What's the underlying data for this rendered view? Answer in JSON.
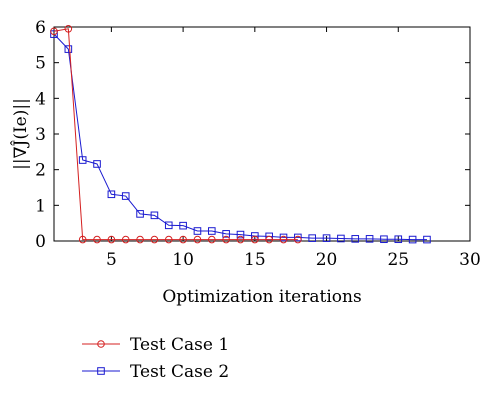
{
  "chart_data": {
    "type": "line",
    "title": "",
    "xlabel": "Optimization iterations",
    "ylabel": "||∇Ĵ(Ie)||",
    "xlim": [
      1,
      30
    ],
    "ylim": [
      0,
      6
    ],
    "xticks": [
      5,
      10,
      15,
      20,
      25,
      30
    ],
    "yticks": [
      0,
      1,
      2,
      3,
      4,
      5,
      6
    ],
    "grid": false,
    "legend_position": "bottom-left",
    "series": [
      {
        "name": "Test Case 1",
        "color": "#d42020",
        "marker": "circle",
        "x": [
          1,
          2,
          3,
          4,
          5,
          6,
          7,
          8,
          9,
          10,
          11,
          12,
          13,
          14,
          15,
          16,
          17,
          18
        ],
        "y": [
          5.88,
          5.95,
          0.04,
          0.04,
          0.04,
          0.04,
          0.04,
          0.04,
          0.04,
          0.04,
          0.04,
          0.04,
          0.04,
          0.04,
          0.04,
          0.04,
          0.04,
          0.04
        ]
      },
      {
        "name": "Test Case 2",
        "color": "#1a1ad0",
        "marker": "square",
        "x": [
          1,
          2,
          3,
          4,
          5,
          6,
          7,
          8,
          9,
          10,
          11,
          12,
          13,
          14,
          15,
          16,
          17,
          18,
          19,
          20,
          21,
          22,
          23,
          24,
          25,
          26,
          27
        ],
        "y": [
          5.8,
          5.38,
          2.27,
          2.16,
          1.31,
          1.26,
          0.76,
          0.72,
          0.44,
          0.43,
          0.28,
          0.28,
          0.2,
          0.18,
          0.14,
          0.13,
          0.1,
          0.1,
          0.08,
          0.08,
          0.07,
          0.06,
          0.06,
          0.05,
          0.05,
          0.04,
          0.04
        ]
      }
    ]
  }
}
